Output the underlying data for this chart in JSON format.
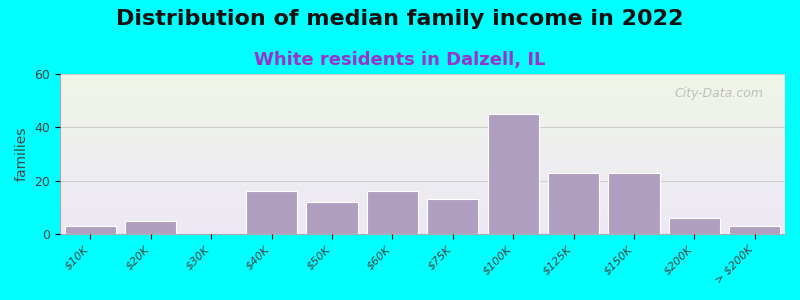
{
  "title": "Distribution of median family income in 2022",
  "subtitle": "White residents in Dalzell, IL",
  "xlabel": "",
  "ylabel": "families",
  "background_outer": "#00FFFF",
  "background_inner_top": "#f0f5e8",
  "background_inner_bottom": "#e8e0f0",
  "bar_color": "#b09ec0",
  "bar_edge_color": "#ffffff",
  "categories": [
    "$10K",
    "$20K",
    "$30K",
    "$40K",
    "$50K",
    "$60K",
    "$75K",
    "$100K",
    "$125K",
    "$150K",
    "$200K",
    "> $200K"
  ],
  "values": [
    3,
    5,
    0,
    16,
    12,
    16,
    13,
    45,
    23,
    23,
    6,
    3
  ],
  "ylim": [
    0,
    60
  ],
  "yticks": [
    0,
    20,
    40,
    60
  ],
  "title_fontsize": 16,
  "subtitle_fontsize": 13,
  "subtitle_color": "#9933cc",
  "watermark": "City-Data.com",
  "bar_width": 0.85
}
